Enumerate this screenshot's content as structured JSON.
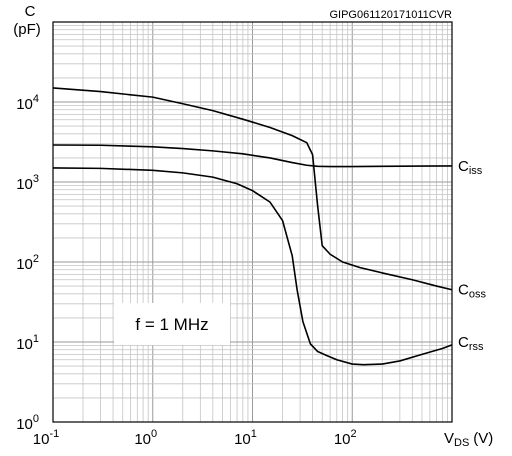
{
  "chart_data": {
    "type": "line",
    "figure_id": "GIPG061120171011CVR",
    "x_scale": "log",
    "y_scale": "log",
    "xlim": [
      0.1,
      1000
    ],
    "ylim": [
      1,
      100000
    ],
    "grid": true,
    "x_tick_labels": [
      {
        "base": "10",
        "exp": "-1",
        "value": 0.1
      },
      {
        "base": "10",
        "exp": "0",
        "value": 1
      },
      {
        "base": "10",
        "exp": "1",
        "value": 10
      },
      {
        "base": "10",
        "exp": "2",
        "value": 100
      }
    ],
    "y_tick_labels": [
      {
        "base": "10",
        "exp": "0",
        "value": 1
      },
      {
        "base": "10",
        "exp": "1",
        "value": 10
      },
      {
        "base": "10",
        "exp": "2",
        "value": 100
      },
      {
        "base": "10",
        "exp": "3",
        "value": 1000
      },
      {
        "base": "10",
        "exp": "4",
        "value": 10000
      }
    ],
    "y_axis_label": {
      "main": "C",
      "unit": "(pF)"
    },
    "x_axis_label": {
      "main": "V",
      "sub": "DS",
      "unit": "(V)"
    },
    "annotation": "f = 1 MHz",
    "series": [
      {
        "name": "Ciss",
        "label_main": "C",
        "label_sub": "iss",
        "x": [
          0.1,
          0.3,
          1,
          2,
          4,
          8,
          15,
          25,
          35,
          45,
          60,
          100,
          200,
          500,
          1000
        ],
        "y": [
          2900,
          2880,
          2750,
          2620,
          2450,
          2250,
          2000,
          1750,
          1620,
          1570,
          1560,
          1560,
          1570,
          1580,
          1590
        ]
      },
      {
        "name": "Coss",
        "label_main": "C",
        "label_sub": "oss",
        "x": [
          0.1,
          0.3,
          1,
          2,
          4,
          8,
          15,
          25,
          35,
          40,
          45,
          50,
          60,
          80,
          120,
          200,
          400,
          700,
          1000
        ],
        "y": [
          15000,
          13500,
          11500,
          9500,
          7800,
          6100,
          4800,
          3800,
          3100,
          2200,
          500,
          160,
          125,
          100,
          85,
          73,
          60,
          50,
          45
        ]
      },
      {
        "name": "Crss",
        "label_main": "C",
        "label_sub": "rss",
        "x": [
          0.1,
          0.3,
          1,
          2,
          4,
          7,
          10,
          15,
          20,
          25,
          28,
          32,
          38,
          45,
          55,
          70,
          100,
          130,
          200,
          300,
          500,
          800,
          1000
        ],
        "y": [
          1500,
          1480,
          1400,
          1300,
          1150,
          950,
          780,
          560,
          330,
          120,
          45,
          18,
          9.5,
          7.6,
          6.8,
          6.0,
          5.3,
          5.2,
          5.3,
          5.8,
          7.0,
          8.3,
          9.2
        ]
      }
    ]
  }
}
